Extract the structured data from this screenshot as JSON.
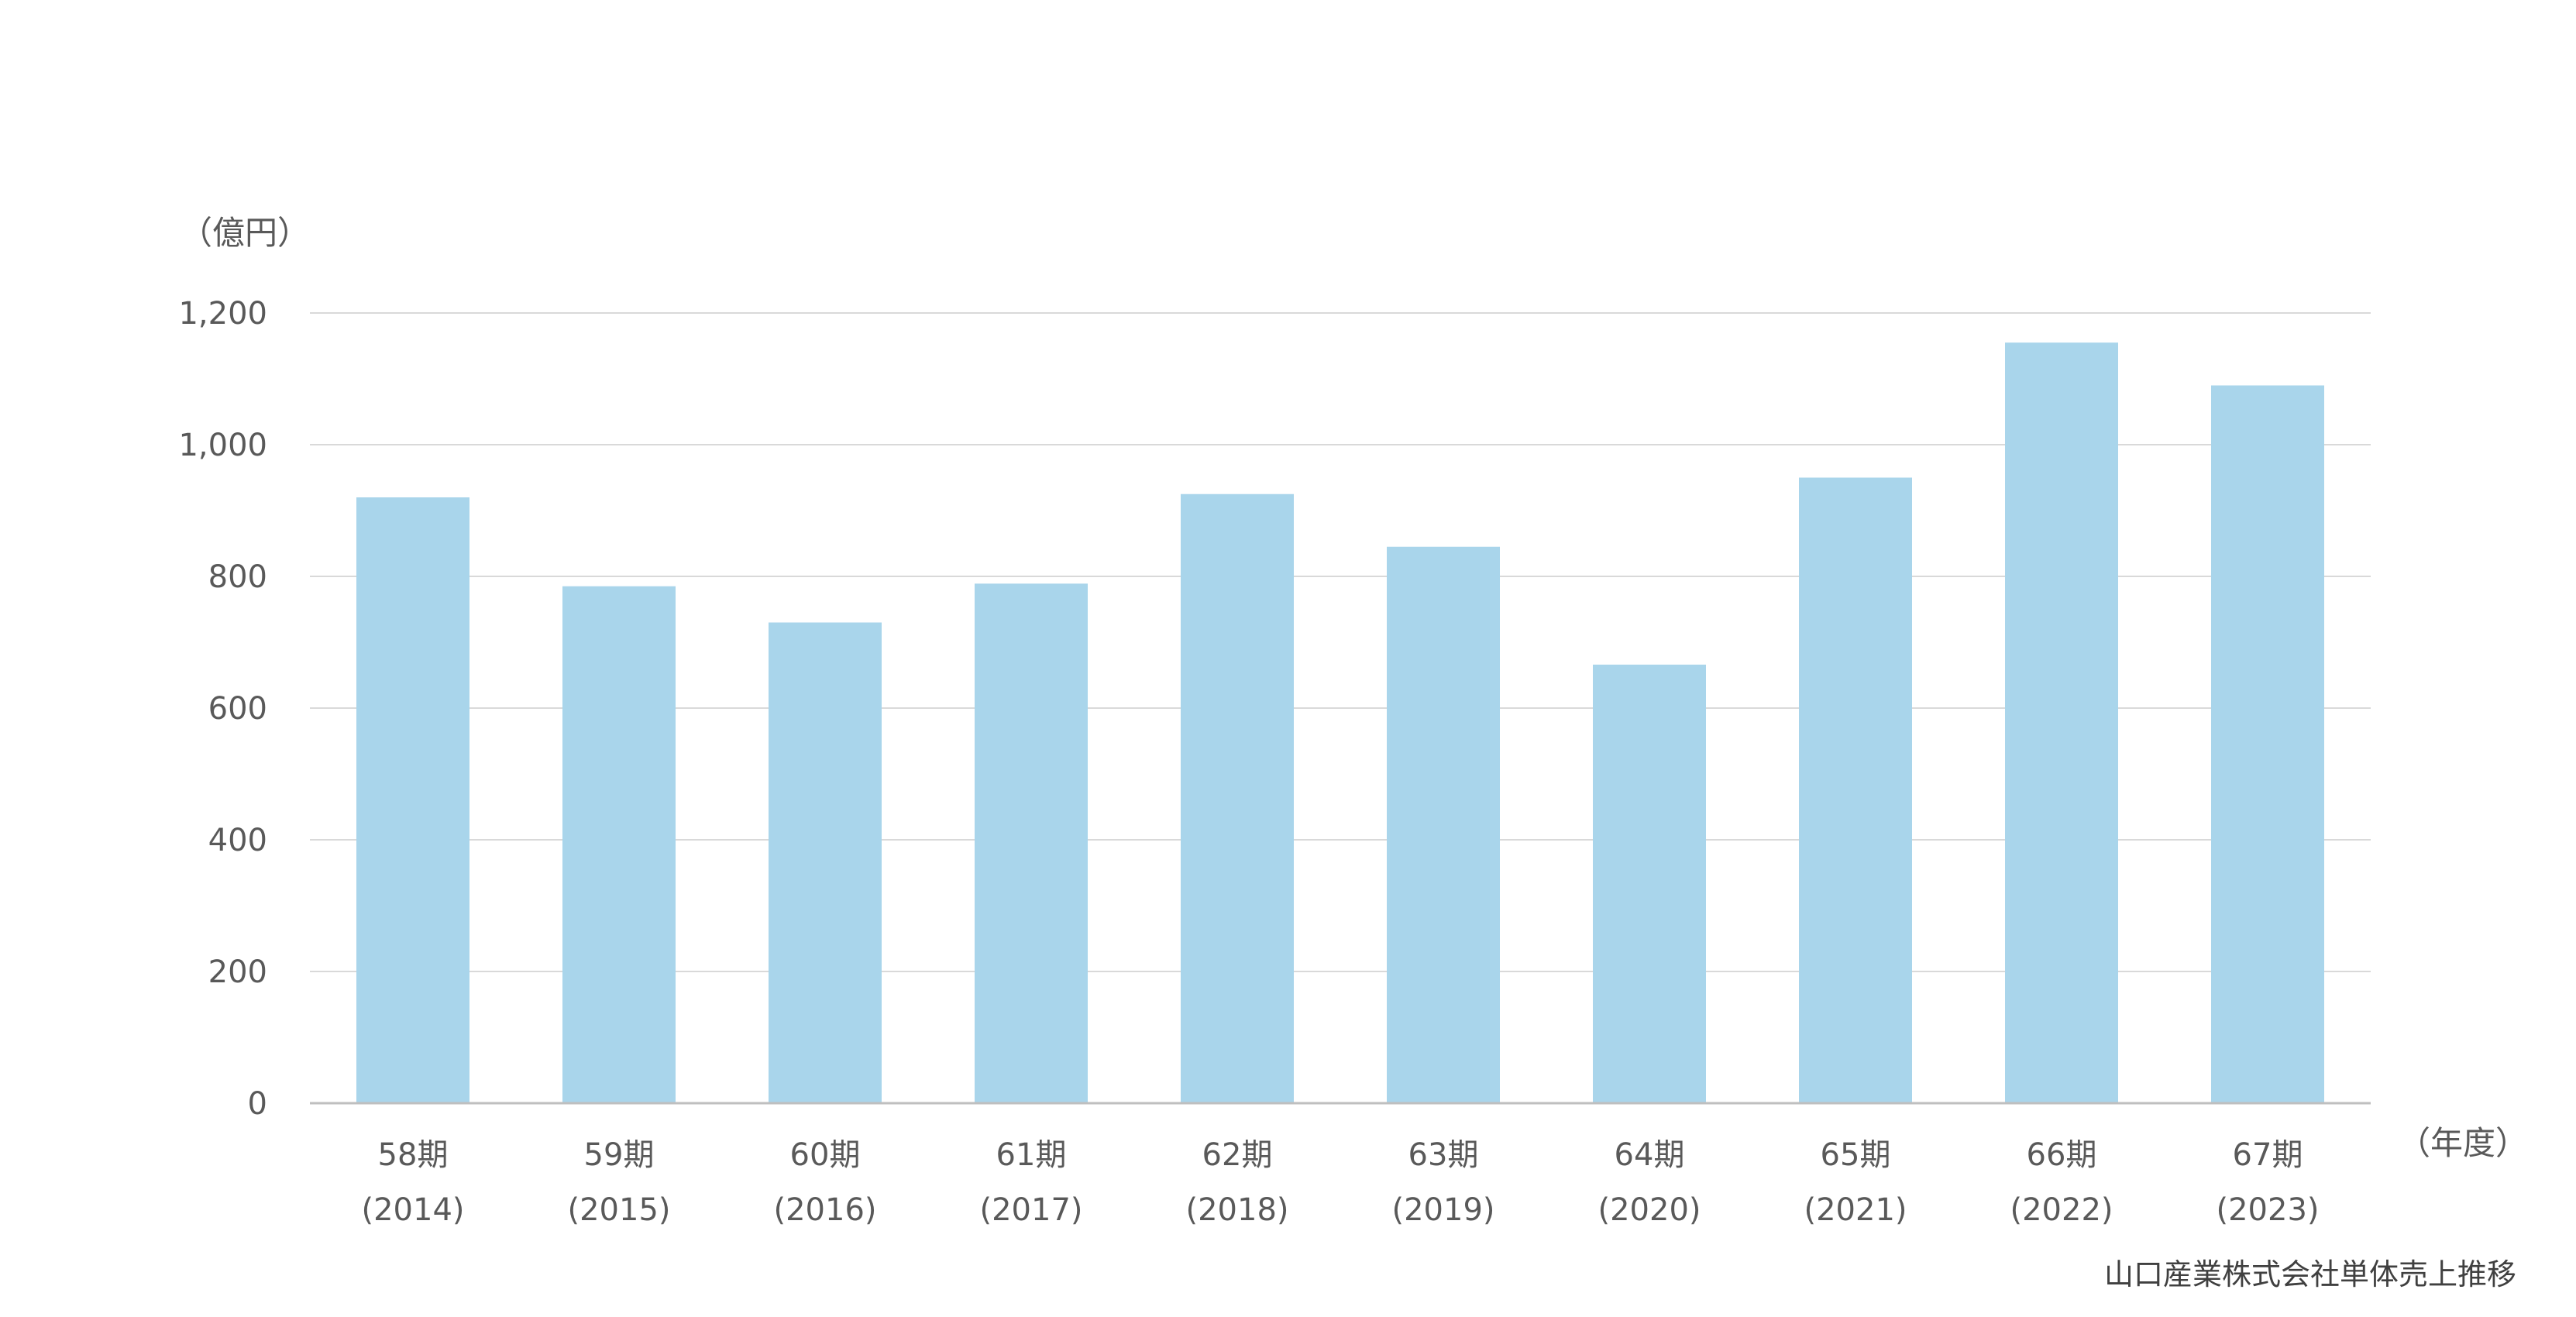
{
  "chart_data": {
    "type": "bar",
    "y_unit_label": "（億円）",
    "x_unit_label": "（年度）",
    "source_note": "山口産業株式会社単体売上推移",
    "categories": [
      {
        "period": "58期",
        "year": "(2014)"
      },
      {
        "period": "59期",
        "year": "(2015)"
      },
      {
        "period": "60期",
        "year": "(2016)"
      },
      {
        "period": "61期",
        "year": "(2017)"
      },
      {
        "period": "62期",
        "year": "(2018)"
      },
      {
        "period": "63期",
        "year": "(2019)"
      },
      {
        "period": "64期",
        "year": "(2020)"
      },
      {
        "period": "65期",
        "year": "(2021)"
      },
      {
        "period": "66期",
        "year": "(2022)"
      },
      {
        "period": "67期",
        "year": "(2023)"
      }
    ],
    "values": [
      920,
      785,
      730,
      789,
      925,
      845,
      666,
      950,
      1155,
      1090
    ],
    "ylim": [
      0,
      1200
    ],
    "yticks": [
      0,
      200,
      400,
      600,
      800,
      1000,
      1200
    ],
    "ytick_labels": [
      "0",
      "200",
      "400",
      "600",
      "800",
      "1,000",
      "1,200"
    ],
    "grid": true,
    "colors": {
      "bar": "#a9d5eb",
      "grid": "#d9d9d9",
      "axis": "#bfbfbf",
      "text": "#595959"
    }
  }
}
